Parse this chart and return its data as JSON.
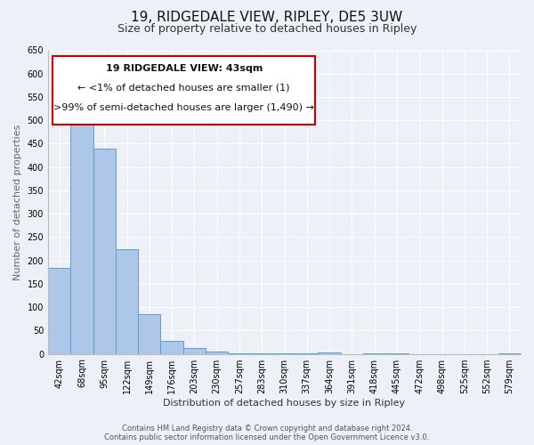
{
  "title": "19, RIDGEDALE VIEW, RIPLEY, DE5 3UW",
  "subtitle": "Size of property relative to detached houses in Ripley",
  "xlabel": "Distribution of detached houses by size in Ripley",
  "ylabel": "Number of detached properties",
  "categories": [
    "42sqm",
    "68sqm",
    "95sqm",
    "122sqm",
    "149sqm",
    "176sqm",
    "203sqm",
    "230sqm",
    "257sqm",
    "283sqm",
    "310sqm",
    "337sqm",
    "364sqm",
    "391sqm",
    "418sqm",
    "445sqm",
    "472sqm",
    "498sqm",
    "525sqm",
    "552sqm",
    "579sqm"
  ],
  "values": [
    185,
    510,
    440,
    225,
    85,
    27,
    12,
    5,
    2,
    1,
    1,
    1,
    3,
    0,
    1,
    1,
    0,
    0,
    0,
    0,
    2
  ],
  "bar_color": "#aec6e8",
  "bar_edge_color": "#5a9fd4",
  "ylim": [
    0,
    650
  ],
  "yticks": [
    0,
    50,
    100,
    150,
    200,
    250,
    300,
    350,
    400,
    450,
    500,
    550,
    600,
    650
  ],
  "annotation_box_edge_color": "#cc0000",
  "annotation_line1": "19 RIDGEDALE VIEW: 43sqm",
  "annotation_line2": "← <1% of detached houses are smaller (1)",
  "annotation_line3": ">99% of semi-detached houses are larger (1,490) →",
  "footer1": "Contains HM Land Registry data © Crown copyright and database right 2024.",
  "footer2": "Contains public sector information licensed under the Open Government Licence v3.0.",
  "background_color": "#edf1f7",
  "plot_bg_color": "#edf1f7",
  "grid_color": "#ffffff",
  "title_fontsize": 11,
  "subtitle_fontsize": 9,
  "axis_label_fontsize": 8,
  "tick_fontsize": 7,
  "annotation_fontsize": 8,
  "footer_fontsize": 6
}
